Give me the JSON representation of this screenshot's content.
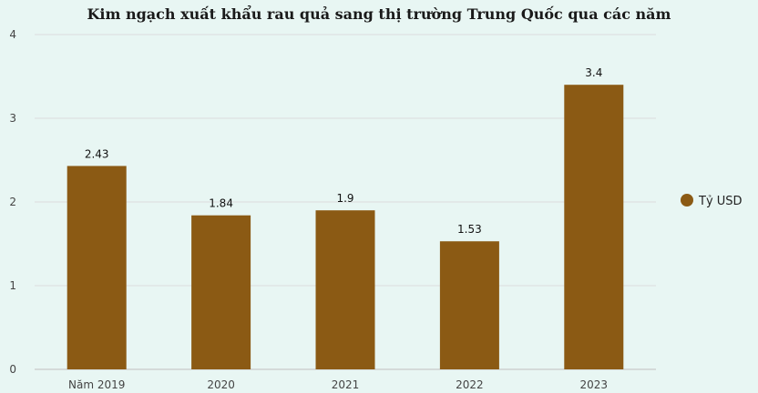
{
  "chart_data": {
    "type": "bar",
    "title": "Kim ngạch xuất khẩu rau quả sang thị trường Trung Quốc qua các năm",
    "categories": [
      "Năm 2019",
      "2020",
      "2021",
      "2022",
      "2023"
    ],
    "series": [
      {
        "name": "Tỷ USD",
        "values": [
          2.43,
          1.84,
          1.9,
          1.53,
          3.4
        ],
        "color": "#8b5a14"
      }
    ],
    "data_labels": [
      "2.43",
      "1.84",
      "1.9",
      "1.53",
      "3.4"
    ],
    "xlabel": "",
    "ylabel": "",
    "ylim": [
      0,
      4
    ],
    "yticks": [
      0,
      1,
      2,
      3,
      4
    ],
    "grid": true,
    "legend_position": "right"
  },
  "colors": {
    "background": "#e8f6f3",
    "gridline": "#dcdcdc",
    "axis": "#bfbfbf"
  }
}
